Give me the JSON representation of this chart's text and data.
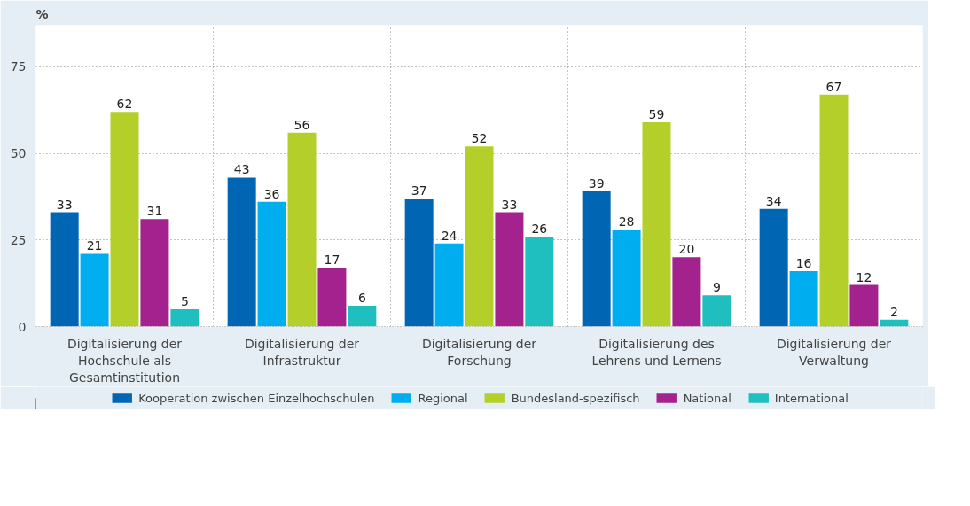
{
  "chart_data": {
    "type": "bar",
    "ylabel": "%",
    "categories": [
      "Digitalisierung der Hochschule als Gesamtinstitution",
      "Digitalisierung der Infrastruktur",
      "Digitalisierung der Forschung",
      "Digitalisierung des Lehrens und Lernens",
      "Digitalisierung der Verwaltung"
    ],
    "series": [
      {
        "name": "Kooperation zwischen Einzelhochschulen",
        "color": "#0066b3",
        "values": [
          33,
          43,
          37,
          39,
          34
        ]
      },
      {
        "name": "Regional",
        "color": "#00aeef",
        "values": [
          21,
          36,
          24,
          28,
          16
        ]
      },
      {
        "name": "Bundesland-spezifisch",
        "color": "#b5cf2a",
        "values": [
          62,
          56,
          52,
          59,
          67
        ]
      },
      {
        "name": "National",
        "color": "#a3228e",
        "values": [
          31,
          17,
          33,
          20,
          12
        ]
      },
      {
        "name": "International",
        "color": "#20bfbf",
        "values": [
          5,
          6,
          26,
          9,
          2
        ]
      }
    ],
    "ylim": [
      0,
      87
    ],
    "yticks": [
      0,
      25,
      50,
      75
    ],
    "grid": true,
    "legend": "bottom",
    "data_labels": true
  }
}
